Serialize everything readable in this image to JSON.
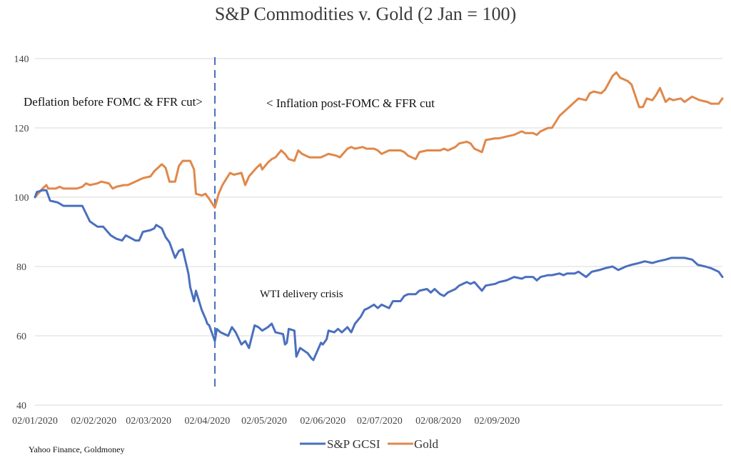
{
  "chart_data": {
    "type": "line",
    "title": "S&P Commodities v. Gold (2 Jan = 100)",
    "xlabel": "",
    "ylabel": "",
    "ylim": [
      40,
      140
    ],
    "yticks": [
      40,
      60,
      80,
      100,
      120,
      140
    ],
    "x_ticks": [
      "02/01/2020",
      "02/02/2020",
      "02/03/2020",
      "02/04/2020",
      "02/05/2020",
      "02/06/2020",
      "02/07/2020",
      "02/08/2020",
      "02/09/2020"
    ],
    "grid": true,
    "legend_position": "bottom",
    "series": [
      {
        "name": "S&P GCSI",
        "color": "#4a6fbe",
        "points": [
          [
            "2020-01-02",
            100.0
          ],
          [
            "2020-01-03",
            101.5
          ],
          [
            "2020-01-06",
            102.0
          ],
          [
            "2020-01-08",
            102.0
          ],
          [
            "2020-01-10",
            99.0
          ],
          [
            "2020-01-14",
            98.5
          ],
          [
            "2020-01-17",
            97.5
          ],
          [
            "2020-01-21",
            97.5
          ],
          [
            "2020-01-27",
            97.5
          ],
          [
            "2020-01-31",
            93.0
          ],
          [
            "2020-02-04",
            91.5
          ],
          [
            "2020-02-07",
            91.5
          ],
          [
            "2020-02-11",
            89.0
          ],
          [
            "2020-02-14",
            88.0
          ],
          [
            "2020-02-17",
            87.5
          ],
          [
            "2020-02-19",
            89.0
          ],
          [
            "2020-02-24",
            87.5
          ],
          [
            "2020-02-26",
            87.5
          ],
          [
            "2020-02-28",
            90.0
          ],
          [
            "2020-03-03",
            90.5
          ],
          [
            "2020-03-05",
            91.0
          ],
          [
            "2020-03-06",
            92.0
          ],
          [
            "2020-03-09",
            91.0
          ],
          [
            "2020-03-11",
            88.5
          ],
          [
            "2020-03-13",
            87.0
          ],
          [
            "2020-03-16",
            82.5
          ],
          [
            "2020-03-18",
            84.5
          ],
          [
            "2020-03-20",
            85.0
          ],
          [
            "2020-03-23",
            78.0
          ],
          [
            "2020-03-24",
            74.0
          ],
          [
            "2020-03-26",
            70.0
          ],
          [
            "2020-03-27",
            73.0
          ],
          [
            "2020-03-30",
            67.5
          ],
          [
            "2020-04-01",
            65.0
          ],
          [
            "2020-04-02",
            63.5
          ],
          [
            "2020-04-03",
            63.0
          ],
          [
            "2020-04-06",
            58.5
          ],
          [
            "2020-04-07",
            62.0
          ],
          [
            "2020-04-09",
            61.0
          ],
          [
            "2020-04-13",
            60.0
          ],
          [
            "2020-04-15",
            62.5
          ],
          [
            "2020-04-17",
            61.0
          ],
          [
            "2020-04-20",
            57.5
          ],
          [
            "2020-04-22",
            58.5
          ],
          [
            "2020-04-24",
            56.5
          ],
          [
            "2020-04-27",
            63.0
          ],
          [
            "2020-04-29",
            62.5
          ],
          [
            "2020-05-01",
            61.5
          ],
          [
            "2020-05-04",
            62.5
          ],
          [
            "2020-05-06",
            63.5
          ],
          [
            "2020-05-08",
            61.0
          ],
          [
            "2020-05-12",
            60.5
          ],
          [
            "2020-05-13",
            57.5
          ],
          [
            "2020-05-14",
            58.0
          ],
          [
            "2020-05-15",
            62.0
          ],
          [
            "2020-05-18",
            61.5
          ],
          [
            "2020-05-19",
            54.0
          ],
          [
            "2020-05-21",
            56.5
          ],
          [
            "2020-05-25",
            55.0
          ],
          [
            "2020-05-27",
            53.5
          ],
          [
            "2020-05-28",
            53.0
          ],
          [
            "2020-06-01",
            58.0
          ],
          [
            "2020-06-02",
            57.5
          ],
          [
            "2020-06-04",
            59.0
          ],
          [
            "2020-06-05",
            61.5
          ],
          [
            "2020-06-08",
            61.0
          ],
          [
            "2020-06-10",
            62.0
          ],
          [
            "2020-06-12",
            61.0
          ],
          [
            "2020-06-15",
            62.5
          ],
          [
            "2020-06-17",
            61.0
          ],
          [
            "2020-06-19",
            63.5
          ],
          [
            "2020-06-22",
            65.5
          ],
          [
            "2020-06-24",
            67.5
          ],
          [
            "2020-06-26",
            68.0
          ],
          [
            "2020-06-29",
            69.0
          ],
          [
            "2020-07-01",
            68.0
          ],
          [
            "2020-07-03",
            69.0
          ],
          [
            "2020-07-07",
            68.0
          ],
          [
            "2020-07-09",
            70.0
          ],
          [
            "2020-07-13",
            70.0
          ],
          [
            "2020-07-15",
            71.5
          ],
          [
            "2020-07-17",
            72.0
          ],
          [
            "2020-07-21",
            72.0
          ],
          [
            "2020-07-23",
            73.0
          ],
          [
            "2020-07-27",
            73.5
          ],
          [
            "2020-07-29",
            72.5
          ],
          [
            "2020-07-31",
            73.5
          ],
          [
            "2020-08-03",
            72.0
          ],
          [
            "2020-08-05",
            71.5
          ],
          [
            "2020-08-07",
            72.5
          ],
          [
            "2020-08-11",
            73.5
          ],
          [
            "2020-08-13",
            74.5
          ],
          [
            "2020-08-17",
            75.5
          ],
          [
            "2020-08-19",
            75.0
          ],
          [
            "2020-08-21",
            75.5
          ],
          [
            "2020-08-25",
            73.0
          ],
          [
            "2020-08-27",
            74.5
          ],
          [
            "2020-09-01",
            75.0
          ],
          [
            "2020-09-03",
            75.5
          ],
          [
            "2020-09-07",
            76.0
          ],
          [
            "2020-09-09",
            76.5
          ],
          [
            "2020-09-11",
            77.0
          ],
          [
            "2020-09-15",
            76.5
          ],
          [
            "2020-09-17",
            77.0
          ],
          [
            "2020-09-21",
            77.0
          ],
          [
            "2020-09-23",
            76.0
          ],
          [
            "2020-09-25",
            77.0
          ],
          [
            "2020-09-29",
            77.5
          ],
          [
            "2020-10-01",
            77.5
          ],
          [
            "2020-10-05",
            78.0
          ],
          [
            "2020-10-07",
            77.5
          ],
          [
            "2020-10-09",
            78.0
          ],
          [
            "2020-10-13",
            78.0
          ],
          [
            "2020-10-15",
            78.5
          ],
          [
            "2020-10-19",
            77.0
          ],
          [
            "2020-10-22",
            78.5
          ],
          [
            "2020-10-26",
            79.0
          ],
          [
            "2020-10-29",
            79.5
          ],
          [
            "2020-11-02",
            80.0
          ],
          [
            "2020-11-05",
            79.0
          ],
          [
            "2020-11-09",
            80.0
          ],
          [
            "2020-11-12",
            80.5
          ],
          [
            "2020-11-16",
            81.0
          ],
          [
            "2020-11-19",
            81.5
          ],
          [
            "2020-11-23",
            81.0
          ],
          [
            "2020-11-26",
            81.5
          ],
          [
            "2020-11-30",
            82.0
          ],
          [
            "2020-12-03",
            82.5
          ],
          [
            "2020-12-07",
            82.5
          ],
          [
            "2020-12-10",
            82.5
          ],
          [
            "2020-12-14",
            82.0
          ],
          [
            "2020-12-17",
            80.5
          ],
          [
            "2020-12-21",
            80.0
          ],
          [
            "2020-12-24",
            79.5
          ],
          [
            "2020-12-28",
            78.5
          ],
          [
            "2020-12-30",
            77.0
          ]
        ]
      },
      {
        "name": "Gold",
        "color": "#e0884a",
        "points": [
          [
            "2020-01-02",
            100.0
          ],
          [
            "2020-01-06",
            102.5
          ],
          [
            "2020-01-08",
            103.5
          ],
          [
            "2020-01-09",
            102.5
          ],
          [
            "2020-01-13",
            102.5
          ],
          [
            "2020-01-15",
            103.0
          ],
          [
            "2020-01-17",
            102.5
          ],
          [
            "2020-01-21",
            102.5
          ],
          [
            "2020-01-24",
            102.5
          ],
          [
            "2020-01-27",
            103.0
          ],
          [
            "2020-01-29",
            104.0
          ],
          [
            "2020-01-31",
            103.5
          ],
          [
            "2020-02-04",
            104.0
          ],
          [
            "2020-02-06",
            104.5
          ],
          [
            "2020-02-10",
            104.0
          ],
          [
            "2020-02-12",
            102.5
          ],
          [
            "2020-02-14",
            103.0
          ],
          [
            "2020-02-18",
            103.5
          ],
          [
            "2020-02-20",
            103.5
          ],
          [
            "2020-02-24",
            104.5
          ],
          [
            "2020-02-26",
            105.0
          ],
          [
            "2020-02-28",
            105.5
          ],
          [
            "2020-03-03",
            106.0
          ],
          [
            "2020-03-05",
            107.5
          ],
          [
            "2020-03-09",
            109.5
          ],
          [
            "2020-03-11",
            108.5
          ],
          [
            "2020-03-13",
            104.5
          ],
          [
            "2020-03-16",
            104.5
          ],
          [
            "2020-03-18",
            109.0
          ],
          [
            "2020-03-20",
            110.5
          ],
          [
            "2020-03-24",
            110.5
          ],
          [
            "2020-03-26",
            108.0
          ],
          [
            "2020-03-27",
            101.0
          ],
          [
            "2020-03-30",
            100.5
          ],
          [
            "2020-04-01",
            101.0
          ],
          [
            "2020-04-03",
            99.5
          ],
          [
            "2020-04-06",
            97.0
          ],
          [
            "2020-04-08",
            101.0
          ],
          [
            "2020-04-10",
            103.5
          ],
          [
            "2020-04-14",
            107.0
          ],
          [
            "2020-04-16",
            106.5
          ],
          [
            "2020-04-20",
            107.0
          ],
          [
            "2020-04-22",
            103.5
          ],
          [
            "2020-04-24",
            106.0
          ],
          [
            "2020-04-28",
            108.5
          ],
          [
            "2020-04-30",
            109.5
          ],
          [
            "2020-05-01",
            108.0
          ],
          [
            "2020-05-04",
            110.0
          ],
          [
            "2020-05-06",
            111.0
          ],
          [
            "2020-05-08",
            111.5
          ],
          [
            "2020-05-11",
            113.5
          ],
          [
            "2020-05-13",
            112.5
          ],
          [
            "2020-05-15",
            111.0
          ],
          [
            "2020-05-18",
            110.5
          ],
          [
            "2020-05-20",
            113.5
          ],
          [
            "2020-05-22",
            112.5
          ],
          [
            "2020-05-26",
            111.5
          ],
          [
            "2020-05-28",
            111.5
          ],
          [
            "2020-06-01",
            111.5
          ],
          [
            "2020-06-03",
            112.0
          ],
          [
            "2020-06-05",
            112.5
          ],
          [
            "2020-06-09",
            112.0
          ],
          [
            "2020-06-11",
            111.5
          ],
          [
            "2020-06-15",
            114.0
          ],
          [
            "2020-06-17",
            114.5
          ],
          [
            "2020-06-19",
            114.0
          ],
          [
            "2020-06-23",
            114.5
          ],
          [
            "2020-06-25",
            114.0
          ],
          [
            "2020-06-29",
            114.0
          ],
          [
            "2020-07-01",
            113.5
          ],
          [
            "2020-07-03",
            112.5
          ],
          [
            "2020-07-07",
            113.5
          ],
          [
            "2020-07-09",
            113.5
          ],
          [
            "2020-07-13",
            113.5
          ],
          [
            "2020-07-15",
            113.0
          ],
          [
            "2020-07-17",
            112.0
          ],
          [
            "2020-07-21",
            111.0
          ],
          [
            "2020-07-23",
            113.0
          ],
          [
            "2020-07-27",
            113.5
          ],
          [
            "2020-07-29",
            113.5
          ],
          [
            "2020-08-03",
            113.5
          ],
          [
            "2020-08-05",
            114.0
          ],
          [
            "2020-08-07",
            113.5
          ],
          [
            "2020-08-11",
            114.5
          ],
          [
            "2020-08-13",
            115.5
          ],
          [
            "2020-08-17",
            116.0
          ],
          [
            "2020-08-19",
            115.5
          ],
          [
            "2020-08-21",
            114.0
          ],
          [
            "2020-08-25",
            113.0
          ],
          [
            "2020-08-27",
            116.5
          ],
          [
            "2020-09-01",
            117.0
          ],
          [
            "2020-09-03",
            117.0
          ],
          [
            "2020-09-07",
            117.5
          ],
          [
            "2020-09-11",
            118.0
          ],
          [
            "2020-09-15",
            119.0
          ],
          [
            "2020-09-17",
            118.5
          ],
          [
            "2020-09-21",
            118.5
          ],
          [
            "2020-09-23",
            118.0
          ],
          [
            "2020-09-25",
            119.0
          ],
          [
            "2020-09-29",
            120.0
          ],
          [
            "2020-10-01",
            120.0
          ],
          [
            "2020-10-05",
            123.5
          ],
          [
            "2020-10-09",
            125.5
          ],
          [
            "2020-10-13",
            127.5
          ],
          [
            "2020-10-15",
            128.5
          ],
          [
            "2020-10-19",
            128.0
          ],
          [
            "2020-10-21",
            130.0
          ],
          [
            "2020-10-23",
            130.5
          ],
          [
            "2020-10-27",
            130.0
          ],
          [
            "2020-10-29",
            131.0
          ],
          [
            "2020-11-02",
            135.0
          ],
          [
            "2020-11-04",
            136.0
          ],
          [
            "2020-11-06",
            134.5
          ],
          [
            "2020-11-10",
            133.5
          ],
          [
            "2020-11-12",
            132.5
          ],
          [
            "2020-11-16",
            126.0
          ],
          [
            "2020-11-18",
            126.0
          ],
          [
            "2020-11-20",
            128.5
          ],
          [
            "2020-11-23",
            128.0
          ],
          [
            "2020-11-25",
            129.5
          ],
          [
            "2020-11-27",
            131.5
          ],
          [
            "2020-11-30",
            127.5
          ],
          [
            "2020-12-02",
            128.5
          ],
          [
            "2020-12-04",
            128.0
          ],
          [
            "2020-12-08",
            128.5
          ],
          [
            "2020-12-10",
            127.5
          ],
          [
            "2020-12-14",
            129.0
          ],
          [
            "2020-12-16",
            128.5
          ],
          [
            "2020-12-18",
            128.0
          ],
          [
            "2020-12-22",
            127.5
          ],
          [
            "2020-12-24",
            127.0
          ],
          [
            "2020-12-28",
            127.0
          ],
          [
            "2020-12-30",
            128.5
          ]
        ]
      }
    ],
    "annotations": {
      "left_text": "Deflation before FOMC & FFR cut>",
      "right_text": "< Inflation post-FOMC & FFR cut",
      "wti_text": "WTI delivery crisis",
      "divider_date": "2020-04-06",
      "divider_color": "#4a6fbe"
    }
  },
  "source": "Yahoo Finance, Goldmoney"
}
